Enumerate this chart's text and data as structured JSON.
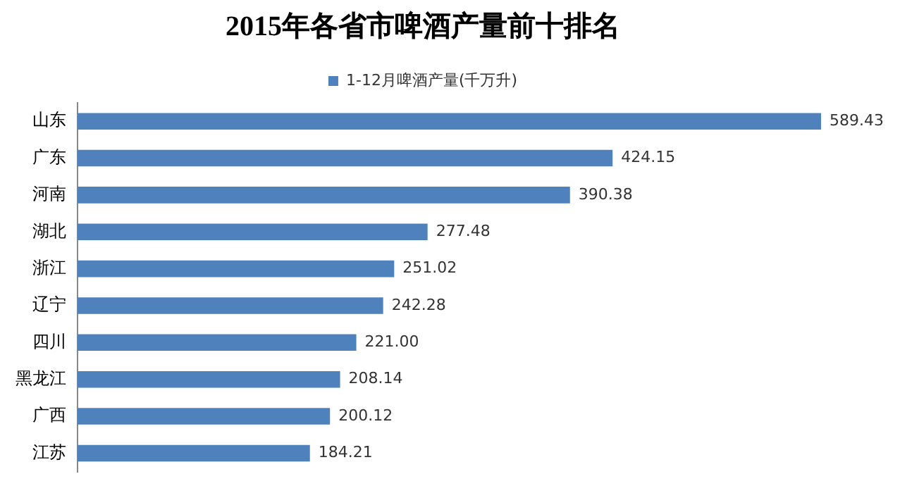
{
  "chart_data": {
    "type": "bar",
    "orientation": "horizontal",
    "title": "2015年各省市啤酒产量前十排名",
    "categories": [
      "山东",
      "广东",
      "河南",
      "湖北",
      "浙江",
      "辽宁",
      "四川",
      "黑龙江",
      "广西",
      "江苏"
    ],
    "series": [
      {
        "name": "1-12月啤酒产量(千万升)",
        "color": "#4f81bd",
        "values": [
          589.43,
          424.15,
          390.38,
          277.48,
          251.02,
          242.28,
          221.0,
          208.14,
          200.12,
          184.21
        ],
        "value_labels": [
          "589.43",
          "424.15",
          "390.38",
          "277.48",
          "251.02",
          "242.28",
          "221.00",
          "208.14",
          "200.12",
          "184.21"
        ]
      }
    ],
    "legend": "top",
    "grid": false
  }
}
